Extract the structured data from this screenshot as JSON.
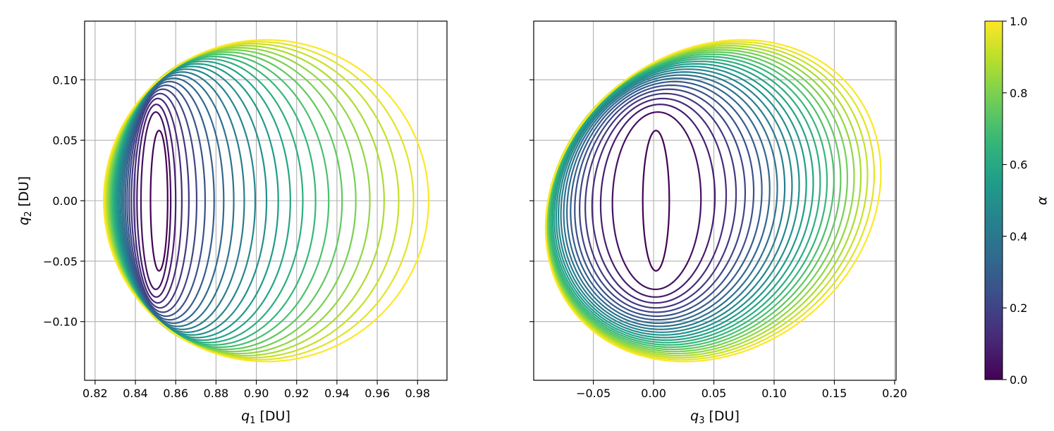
{
  "chart_data": {
    "type": "line",
    "colormap": "viridis",
    "colorbar": {
      "label": "α",
      "range": [
        0,
        1
      ],
      "ticks": [
        0.0,
        0.2,
        0.4,
        0.6,
        0.8,
        1.0
      ],
      "tick_labels": [
        "0.0",
        "0.2",
        "0.4",
        "0.6",
        "0.8",
        "1.0"
      ],
      "position": "right"
    },
    "families": {
      "count": 25,
      "alpha": {
        "start": 0.0,
        "end": 1.0
      },
      "q1_left": {
        "start": 0.8475,
        "end": 0.8243,
        "shape": "sqrt"
      },
      "q1_right": {
        "start": 0.856,
        "end": 0.9855,
        "shape": "pow1.4"
      },
      "q2_amp": {
        "start": 0.058,
        "end": 0.133,
        "shape": "sqrt"
      },
      "q3_center": {
        "start": 0.002,
        "end": 0.0495,
        "shape": "pow1.4"
      },
      "q3_halfwidth": {
        "start": 0.011,
        "end": 0.137,
        "shape": "sqrt"
      },
      "q3_skew_at_end": 0.003
    },
    "panels": [
      {
        "id": "left",
        "x": "q1",
        "y": "q2",
        "xlabel_var": "q",
        "xlabel_sub": "1",
        "xlabel_unit": " [DU]",
        "ylabel_var": "q",
        "ylabel_sub": "2",
        "ylabel_unit": " [DU]",
        "xlim": [
          0.8148,
          0.9946
        ],
        "ylim": [
          -0.1485,
          0.1485
        ],
        "xticks": [
          0.82,
          0.84,
          0.86,
          0.88,
          0.9,
          0.92,
          0.94,
          0.96,
          0.98
        ],
        "xtick_labels": [
          "0.82",
          "0.84",
          "0.86",
          "0.88",
          "0.90",
          "0.92",
          "0.94",
          "0.96",
          "0.98"
        ],
        "yticks": [
          -0.1,
          -0.05,
          0.0,
          0.05,
          0.1
        ],
        "ytick_labels": [
          "−0.10",
          "−0.05",
          "0.00",
          "0.05",
          "0.10"
        ],
        "grid": true
      },
      {
        "id": "right",
        "x": "q3",
        "y": "q2",
        "xlabel_var": "q",
        "xlabel_sub": "3",
        "xlabel_unit": " [DU]",
        "xlim": [
          -0.0995,
          0.2012
        ],
        "ylim": [
          -0.1485,
          0.1485
        ],
        "xticks": [
          -0.05,
          0.0,
          0.05,
          0.1,
          0.15,
          0.2
        ],
        "xtick_labels": [
          "−0.05",
          "0.00",
          "0.05",
          "0.10",
          "0.15",
          "0.20"
        ],
        "yticks": [
          -0.1,
          -0.05,
          0.0,
          0.05,
          0.1
        ],
        "grid": true
      }
    ]
  }
}
